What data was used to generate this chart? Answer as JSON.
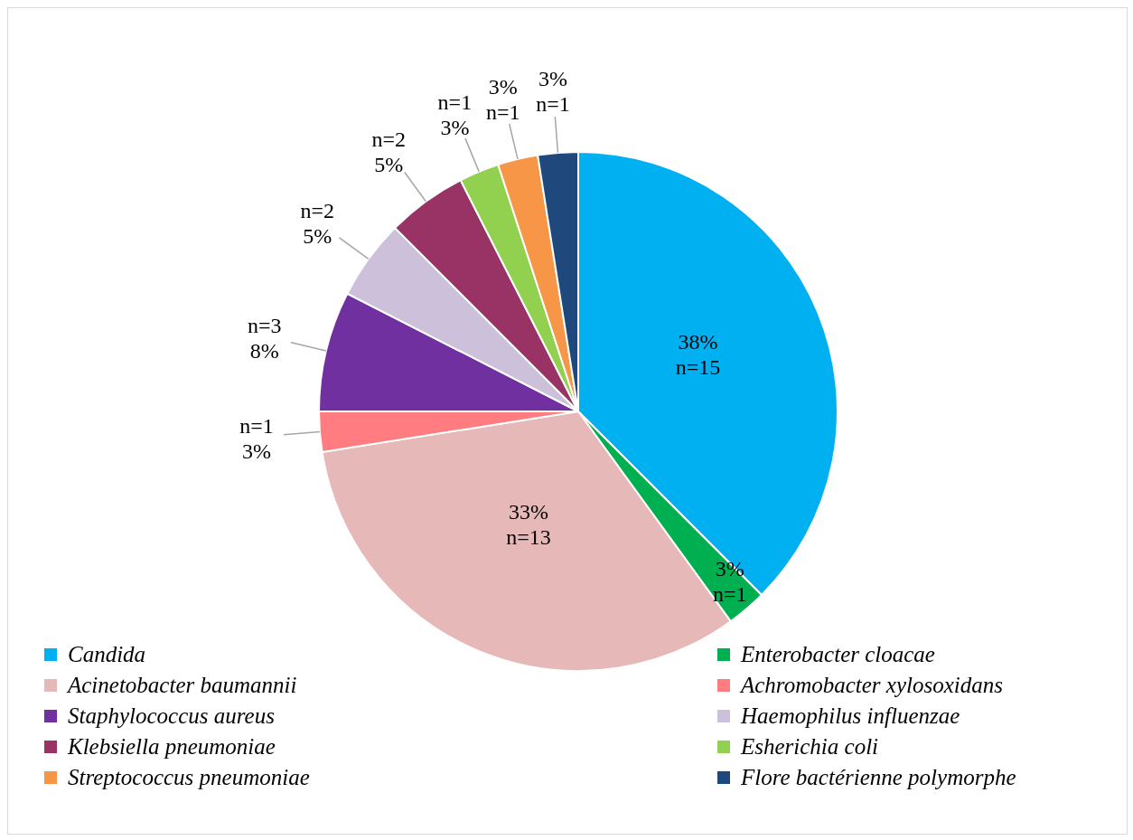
{
  "chart_data": {
    "type": "pie",
    "categories": [
      "Candida",
      "Enterobacter cloacae",
      "Acinetobacter baumannii",
      "Achromobacter xylosoxidans",
      "Staphylococcus aureus",
      "Haemophilus influenzae",
      "Klebsiella pneumoniae",
      "Esherichia coli",
      "Streptococcus pneumoniae",
      "Flore bactérienne polymorphe"
    ],
    "values": [
      15,
      1,
      13,
      1,
      3,
      2,
      2,
      1,
      1,
      1
    ],
    "value_labels": [
      "38% n=15",
      "3% n=1",
      "33% n=13",
      "n=1 3%",
      "n=3 8%",
      "n=2 5%",
      "n=2 5%",
      "n=1 3%",
      "3% n=1",
      "3% n=1"
    ],
    "colors": [
      "#00b0f0",
      "#00b050",
      "#e6b9b8",
      "#ff7c80",
      "#7030a0",
      "#ccc0da",
      "#993366",
      "#92d050",
      "#f79646",
      "#1f497d"
    ],
    "legend": "bottom"
  }
}
